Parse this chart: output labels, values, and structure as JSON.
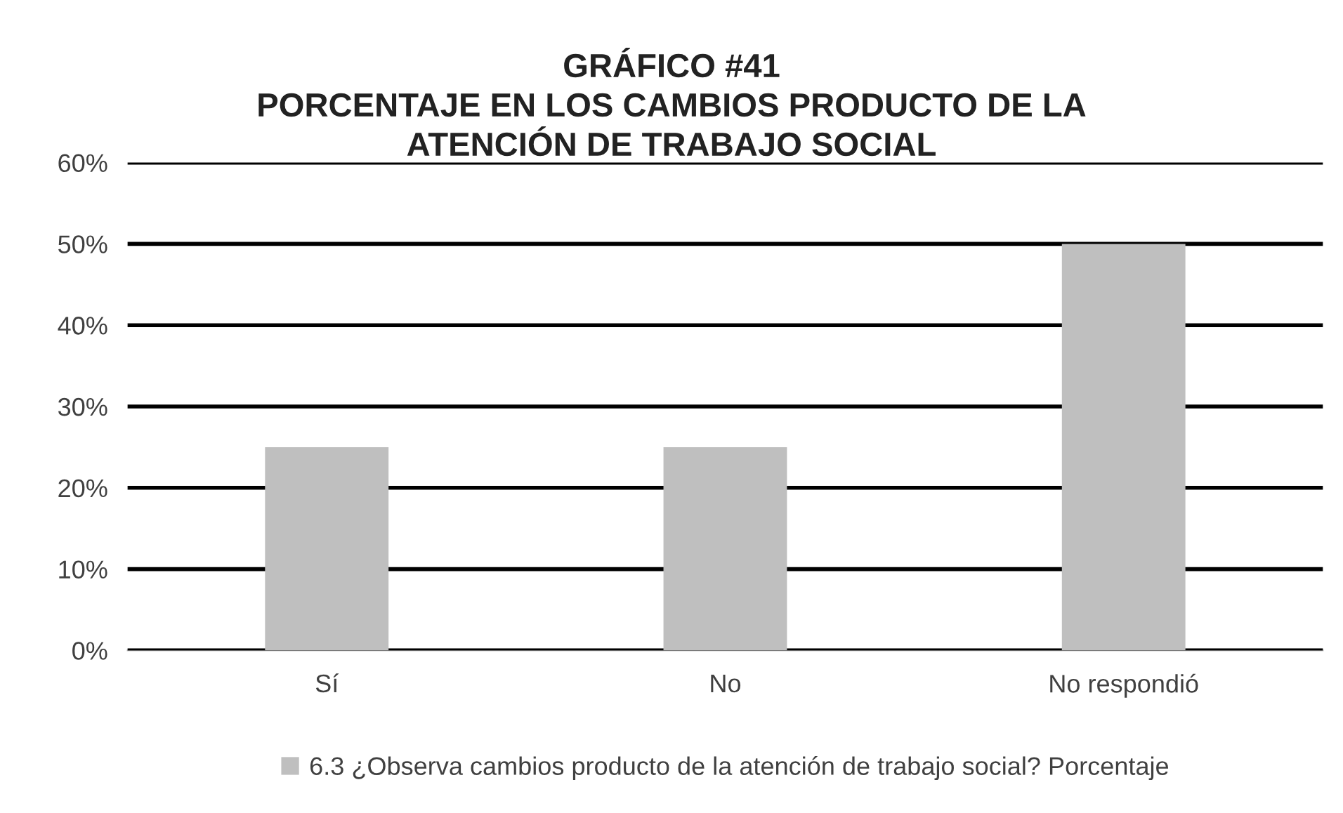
{
  "chart_data": {
    "type": "bar",
    "title": "GRÁFICO #41\nPORCENTAJE EN LOS CAMBIOS PRODUCTO DE LA\nATENCIÓN DE TRABAJO SOCIAL",
    "categories": [
      "Sí",
      "No",
      "No respondió"
    ],
    "series": [
      {
        "name": "6.3 ¿Observa cambios producto de la atención de trabajo social? Porcentaje",
        "color": "#bfbfbf",
        "values": [
          25,
          25,
          50
        ]
      }
    ],
    "ylim": [
      0,
      60
    ],
    "yticks": [
      {
        "value": 0,
        "label": "0%"
      },
      {
        "value": 10,
        "label": "10%"
      },
      {
        "value": 20,
        "label": "20%"
      },
      {
        "value": 30,
        "label": "30%"
      },
      {
        "value": 40,
        "label": "40%"
      },
      {
        "value": 50,
        "label": "50%"
      },
      {
        "value": 60,
        "label": "60%"
      }
    ],
    "grid": "y",
    "legend": "bottom"
  }
}
